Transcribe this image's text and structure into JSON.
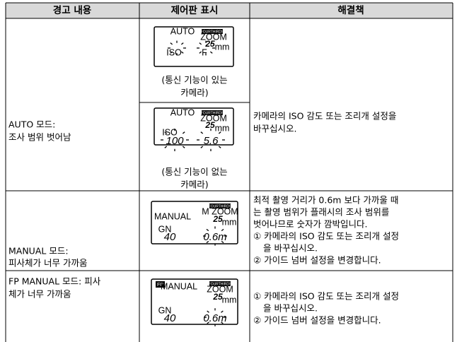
{
  "table": {
    "headers": [
      "경고 내용",
      "제어판 표시",
      "해결책"
    ],
    "rows": [
      {
        "warning": [
          "AUTO 모드:",
          "조사 범위 벗어남"
        ],
        "displays": [
          {
            "lcd": [
              "AUTO",
              "FOURTHIRDS",
              "ZOOM",
              "25",
              "mm",
              "ISO",
              "F"
            ],
            "caption": [
              "(통신 기능이 있는",
              "카메라)"
            ]
          },
          {
            "lcd": [
              "AUTO",
              "FOURTHIRDS",
              "ZOOM",
              "25",
              "mm",
              "ISO",
              "100",
              "5.6"
            ],
            "caption": [
              "(통신 기능이 없는",
              "카메라)"
            ]
          }
        ],
        "solution": [
          "카메라의 ISO 감도 또는 조리개 설정을",
          "바꾸십시오."
        ]
      },
      {
        "warning": [
          "MANUAL 모드:",
          "피사체가 너무 가까움"
        ],
        "displays": [
          {
            "lcd": [
              "MANUAL",
              "FOURTHIRDS",
              "M ZOOM",
              "25",
              "mm",
              "GN",
              "40",
              "0.6m"
            ]
          }
        ],
        "solution": [
          "최적 촬영 거리가 0.6m 보다 가까울 때",
          "는 촬영 범위가 플래시의 조사 범위를",
          "벗어나므로 숫자가 깜박입니다.",
          "① 카메라의 ISO 감도 또는 조리개 설정",
          "을 바꾸십시오.",
          "② 가이드 넘버 설정을 변경합니다."
        ]
      },
      {
        "warning": [
          "FP MANUAL 모드: 피사",
          "체가 너무 가까움"
        ],
        "displays": [
          {
            "lcd": [
              "FP",
              "MANUAL",
              "FOURTHIRDS",
              "ZOOM",
              "25",
              "mm",
              "GN",
              "40",
              "0.6m"
            ]
          }
        ],
        "solution": [
          "① 카메라의 ISO 감도 또는 조리개 설정",
          "을 바꾸십시오.",
          "② 가이드 넘버 설정을 변경합니다."
        ]
      }
    ]
  }
}
